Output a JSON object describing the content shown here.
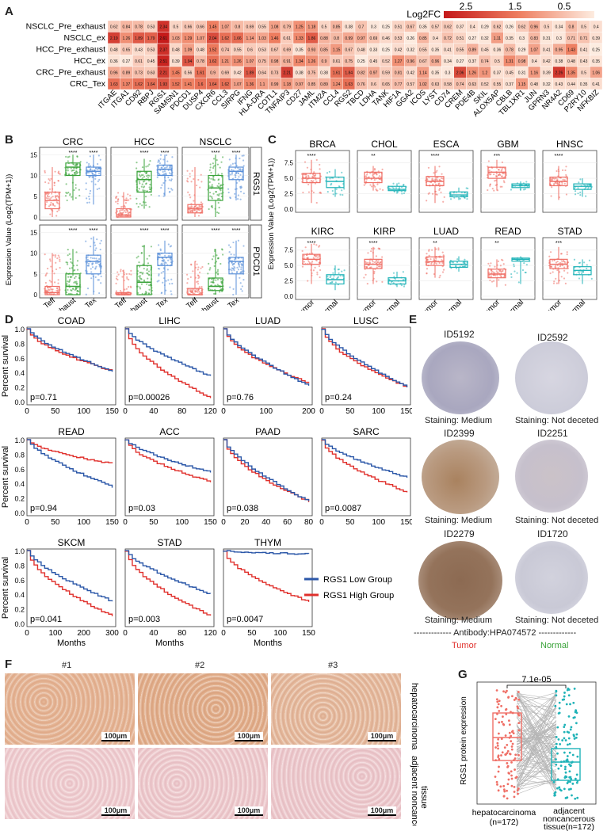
{
  "panels": {
    "A": "A",
    "B": "B",
    "C": "C",
    "D": "D",
    "E": "E",
    "F": "F",
    "G": "G"
  },
  "colors": {
    "high": "#c7201e",
    "mid": "#f08a66",
    "low": "#fde9dc",
    "blue": "#2b57a8",
    "red": "#e0302c",
    "green": "#3aa33a",
    "teal": "#20b3b8",
    "salmon": "#ef6f66"
  },
  "heatmap": {
    "legend_title": "Log2FC",
    "legend_ticks": [
      "2.5",
      "1.5",
      "0.5"
    ],
    "rows": [
      "NSCLC_Pre_exhaust",
      "NSCLC_ex",
      "HCC_Pre_exhaust",
      "HCC_ex",
      "CRC_Pre_exhaust",
      "CRC_Tex"
    ],
    "cols": [
      "ITGAE",
      "ITGA1",
      "CD82",
      "RBPJ",
      "RGS1",
      "SAMSN1",
      "PDCD1",
      "DUSP4",
      "CXCR6",
      "CCL3",
      "SIRPG",
      "IFNG",
      "HLA-DRA",
      "COTL1",
      "TNFAIP3",
      "CD27",
      "JAML",
      "ITM2A",
      "CCL4",
      "RGS2",
      "TBCD",
      "LDHA",
      "TANK",
      "HIF1A",
      "GGA2",
      "ICOS",
      "LYST",
      "CD74",
      "CREM",
      "PDE4B",
      "SKIL",
      "ALOX5AP",
      "CBLB",
      "TBL1XR1",
      "JUN",
      "GPRN3",
      "NR4A2",
      "CD69",
      "P2RY10",
      "NFKBIZ"
    ],
    "values": [
      [
        0.62,
        0.84,
        0.78,
        0.53,
        2.34,
        0.5,
        0.66,
        0.66,
        1.45,
        1.07,
        0.8,
        0.69,
        0.55,
        1.08,
        0.79,
        1.25,
        1.18,
        0.5,
        0.85,
        0.38,
        0.7,
        0.3,
        0.25,
        0.51,
        0.67,
        0.35,
        0.57,
        0.62,
        0.37,
        0.4,
        0.29,
        0.62,
        0.26,
        0.62,
        0.96,
        0.5,
        0.34,
        0.8,
        0.5,
        0.4
      ],
      [
        2.19,
        1.26,
        1.89,
        1.79,
        2.61,
        1.03,
        1.29,
        1.07,
        2.04,
        1.62,
        1.66,
        1.14,
        1.03,
        1.46,
        0.61,
        1.33,
        1.86,
        0.88,
        0.8,
        0.99,
        0.97,
        0.69,
        0.46,
        0.53,
        0.26,
        0.85,
        0.4,
        0.72,
        0.51,
        0.27,
        0.32,
        1.11,
        0.35,
        0.3,
        0.83,
        0.31,
        0.3,
        0.71,
        0.71,
        0.39
      ],
      [
        0.48,
        0.65,
        0.43,
        0.53,
        2.37,
        0.48,
        1.09,
        0.48,
        1.52,
        0.74,
        0.55,
        0.6,
        0.53,
        0.67,
        0.69,
        0.35,
        0.93,
        0.85,
        1.15,
        0.67,
        0.48,
        0.33,
        0.25,
        0.42,
        0.32,
        0.55,
        0.35,
        0.41,
        0.55,
        0.89,
        0.45,
        0.36,
        0.78,
        0.29,
        1.07,
        0.41,
        0.95,
        1.43,
        0.41,
        0.25
      ],
      [
        0.36,
        0.27,
        0.61,
        0.45,
        2.51,
        0.39,
        1.94,
        0.78,
        1.62,
        1.21,
        1.26,
        1.07,
        0.75,
        0.98,
        0.91,
        1.34,
        1.26,
        0.9,
        0.61,
        0.75,
        0.25,
        0.45,
        0.52,
        1.27,
        0.96,
        0.67,
        0.96,
        0.34,
        0.27,
        0.37,
        0.74,
        0.5,
        1.31,
        0.98,
        0.4,
        0.42,
        0.38,
        0.48,
        0.43,
        0.35
      ],
      [
        0.96,
        0.89,
        0.73,
        0.63,
        2.21,
        1.45,
        0.56,
        1.61,
        0.9,
        0.69,
        0.42,
        1.89,
        0.64,
        0.73,
        2.21,
        0.38,
        0.75,
        0.38,
        1.61,
        1.84,
        0.82,
        0.97,
        0.59,
        0.81,
        0.42,
        1.14,
        0.35,
        0.3,
        2.06,
        1.26,
        1.2,
        0.37,
        0.45,
        0.31,
        1.16,
        0.39,
        2.26,
        1.35,
        0.5,
        1.06
      ],
      [
        1.63,
        1.37,
        1.62,
        1.64,
        1.93,
        1.52,
        1.41,
        1.6,
        1.64,
        1.62,
        1.07,
        1.36,
        1.1,
        0.99,
        1.18,
        0.97,
        0.85,
        0.89,
        1.24,
        1.63,
        0.76,
        0.6,
        0.65,
        0.77,
        0.57,
        1.02,
        0.63,
        0.58,
        0.74,
        0.63,
        0.52,
        0.55,
        0.37,
        1.15,
        0.48,
        0.32,
        0.43,
        0.44,
        0.35,
        0.41
      ]
    ]
  },
  "panelB": {
    "ylabel": "Expression Value (Log2(TPM+1))",
    "cols": [
      "CRC",
      "HCC",
      "NSCLC"
    ],
    "rows": [
      "RGS1",
      "PDCD1"
    ],
    "xcats": [
      "Teff",
      "Pre_exhaust",
      "Tex"
    ],
    "sig": "****",
    "yticks": [
      "0",
      "5",
      "10",
      "15"
    ]
  },
  "panelC": {
    "ylabel": "Expression Value (Log2(TPM+1))",
    "cancers": [
      "BRCA",
      "CHOL",
      "ESCA",
      "GBM",
      "HNSC",
      "KIRC",
      "KIRP",
      "LUAD",
      "READ",
      "STAD"
    ],
    "sig": [
      "****",
      "**",
      "****",
      "***",
      "****",
      "****",
      "****",
      "**",
      "**",
      "***"
    ],
    "xcats": [
      "Tumor",
      "Normal"
    ],
    "yticks": [
      "0.0",
      "2.5",
      "5.0",
      "7.5"
    ]
  },
  "panelD": {
    "ylabel": "Percent survival",
    "xlabel": "Months",
    "legend": [
      "RGS1 Low Group",
      "RGS1 High Group"
    ],
    "plots": [
      {
        "name": "COAD",
        "p": "p=0.71",
        "xticks": [
          "0",
          "50",
          "100",
          "150"
        ]
      },
      {
        "name": "LIHC",
        "p": "p=0.00026",
        "xticks": [
          "0",
          "40",
          "80",
          "120"
        ]
      },
      {
        "name": "LUAD",
        "p": "p=0.76",
        "xticks": [
          "0",
          "100",
          "200"
        ]
      },
      {
        "name": "LUSC",
        "p": "p=0.24",
        "xticks": [
          "0",
          "50",
          "100",
          "150"
        ]
      },
      {
        "name": "READ",
        "p": "p=0.94",
        "xticks": [
          "0",
          "50",
          "100",
          "150"
        ]
      },
      {
        "name": "ACC",
        "p": "p=0.03",
        "xticks": [
          "0",
          "50",
          "100",
          "150"
        ]
      },
      {
        "name": "PAAD",
        "p": "p=0.038",
        "xticks": [
          "0",
          "20",
          "40",
          "60",
          "80"
        ]
      },
      {
        "name": "SARC",
        "p": "p=0.0087",
        "xticks": [
          "0",
          "50",
          "100",
          "150"
        ]
      },
      {
        "name": "SKCM",
        "p": "p=0.041",
        "xticks": [
          "0",
          "100",
          "200",
          "300"
        ]
      },
      {
        "name": "STAD",
        "p": "p=0.003",
        "xticks": [
          "0",
          "40",
          "80",
          "120"
        ]
      },
      {
        "name": "THYM",
        "p": "p=0.0047",
        "xticks": [
          "0",
          "50",
          "100",
          "150"
        ]
      }
    ],
    "yticks": [
      "0.0",
      "0.2",
      "0.4",
      "0.6",
      "0.8",
      "1.0"
    ]
  },
  "panelE": {
    "ids": [
      "ID5192",
      "ID2592",
      "ID2399",
      "ID2251",
      "ID2279",
      "ID1720"
    ],
    "staining": [
      "Staining: Medium",
      "Staining: Not deceted",
      "Staining: Medium",
      "Staining: Not deceted",
      "Staining: Medium",
      "Staining: Not deceted"
    ],
    "antibody": "------------- Antibody:HPA074572 -------------",
    "tumor": "Tumor",
    "normal": "Normal"
  },
  "panelF": {
    "cols": [
      "#1",
      "#2",
      "#3"
    ],
    "row1": "hepatocarcinoma",
    "row2a": "adjacent noncancerous",
    "row2b": "tissue",
    "scale": "100μm"
  },
  "panelG": {
    "ylabel": "RGS1 protein expression",
    "pval": "7.1e-05",
    "x1": "hepatocarcinoma",
    "x1n": "(n=172)",
    "x2": "adjacent",
    "x2b": "noncancerous",
    "x2n": "tissue(n=172)"
  }
}
